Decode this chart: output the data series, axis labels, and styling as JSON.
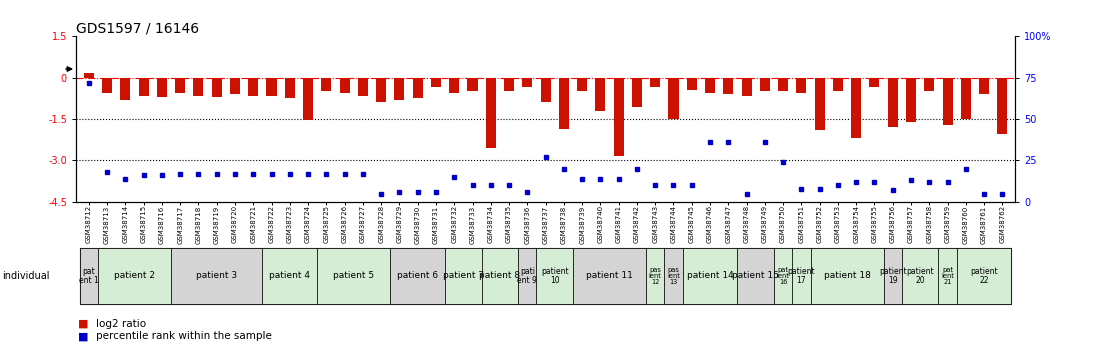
{
  "title": "GDS1597 / 16146",
  "samples": [
    "GSM38712",
    "GSM38713",
    "GSM38714",
    "GSM38715",
    "GSM38716",
    "GSM38717",
    "GSM38718",
    "GSM38719",
    "GSM38720",
    "GSM38721",
    "GSM38722",
    "GSM38723",
    "GSM38724",
    "GSM38725",
    "GSM38726",
    "GSM38727",
    "GSM38728",
    "GSM38729",
    "GSM38730",
    "GSM38731",
    "GSM38732",
    "GSM38733",
    "GSM38734",
    "GSM38735",
    "GSM38736",
    "GSM38737",
    "GSM38738",
    "GSM38739",
    "GSM38740",
    "GSM38741",
    "GSM38742",
    "GSM38743",
    "GSM38744",
    "GSM38745",
    "GSM38746",
    "GSM38747",
    "GSM38748",
    "GSM38749",
    "GSM38750",
    "GSM38751",
    "GSM38752",
    "GSM38753",
    "GSM38754",
    "GSM38755",
    "GSM38756",
    "GSM38757",
    "GSM38758",
    "GSM38759",
    "GSM38760",
    "GSM38761",
    "GSM38762"
  ],
  "log2_ratio": [
    0.18,
    -0.55,
    -0.8,
    -0.65,
    -0.7,
    -0.55,
    -0.65,
    -0.7,
    -0.6,
    -0.65,
    -0.65,
    -0.75,
    -1.55,
    -0.5,
    -0.55,
    -0.65,
    -0.9,
    -0.8,
    -0.75,
    -0.35,
    -0.55,
    -0.5,
    -2.55,
    -0.5,
    -0.35,
    -0.9,
    -1.85,
    -0.5,
    -1.2,
    -2.85,
    -1.05,
    -0.35,
    -1.5,
    -0.45,
    -0.55,
    -0.6,
    -0.65,
    -0.5,
    -0.5,
    -0.55,
    -1.9,
    -0.5,
    -2.2,
    -0.35,
    -1.8,
    -1.6,
    -0.5,
    -1.7,
    -1.5,
    -0.6,
    -2.05
  ],
  "percentile_rank": [
    72,
    18,
    14,
    16,
    16,
    17,
    17,
    17,
    17,
    17,
    17,
    17,
    17,
    17,
    17,
    17,
    5,
    6,
    6,
    6,
    15,
    10,
    10,
    10,
    6,
    27,
    20,
    14,
    14,
    14,
    20,
    10,
    10,
    10,
    36,
    36,
    5,
    36,
    24,
    8,
    8,
    10,
    12,
    12,
    7,
    13,
    12,
    12,
    20,
    5,
    5
  ],
  "patients": [
    {
      "label": "pat\nent 1",
      "start": 0,
      "end": 1,
      "color": "#d4d4d4"
    },
    {
      "label": "patient 2",
      "start": 1,
      "end": 5,
      "color": "#d4edd4"
    },
    {
      "label": "patient 3",
      "start": 5,
      "end": 10,
      "color": "#d4d4d4"
    },
    {
      "label": "patient 4",
      "start": 10,
      "end": 13,
      "color": "#d4edd4"
    },
    {
      "label": "patient 5",
      "start": 13,
      "end": 17,
      "color": "#d4edd4"
    },
    {
      "label": "patient 6",
      "start": 17,
      "end": 20,
      "color": "#d4d4d4"
    },
    {
      "label": "patient 7",
      "start": 20,
      "end": 22,
      "color": "#d4edd4"
    },
    {
      "label": "patient 8",
      "start": 22,
      "end": 24,
      "color": "#d4edd4"
    },
    {
      "label": "pati\nent 9",
      "start": 24,
      "end": 25,
      "color": "#d4d4d4"
    },
    {
      "label": "patient\n10",
      "start": 25,
      "end": 27,
      "color": "#d4edd4"
    },
    {
      "label": "patient 11",
      "start": 27,
      "end": 31,
      "color": "#d4d4d4"
    },
    {
      "label": "pas\nient\n12",
      "start": 31,
      "end": 32,
      "color": "#d4edd4"
    },
    {
      "label": "pas\nient\n13",
      "start": 32,
      "end": 33,
      "color": "#d4d4d4"
    },
    {
      "label": "patient 14",
      "start": 33,
      "end": 36,
      "color": "#d4edd4"
    },
    {
      "label": "patient 15",
      "start": 36,
      "end": 38,
      "color": "#d4d4d4"
    },
    {
      "label": "pat\nient\n16",
      "start": 38,
      "end": 39,
      "color": "#d4edd4"
    },
    {
      "label": "patient\n17",
      "start": 39,
      "end": 40,
      "color": "#d4edd4"
    },
    {
      "label": "patient 18",
      "start": 40,
      "end": 44,
      "color": "#d4edd4"
    },
    {
      "label": "patient\n19",
      "start": 44,
      "end": 45,
      "color": "#d4d4d4"
    },
    {
      "label": "patient\n20",
      "start": 45,
      "end": 47,
      "color": "#d4edd4"
    },
    {
      "label": "pat\nient\n21",
      "start": 47,
      "end": 48,
      "color": "#d4edd4"
    },
    {
      "label": "patient\n22",
      "start": 48,
      "end": 51,
      "color": "#d4edd4"
    }
  ],
  "bar_color": "#cc1100",
  "dot_color": "#0000cc",
  "ylim": [
    -4.5,
    1.5
  ],
  "yticks_left": [
    1.5,
    0.0,
    -1.5,
    -3.0,
    -4.5
  ],
  "yticks_right_pct": [
    100,
    75,
    50,
    25,
    0
  ],
  "title_fontsize": 10,
  "tick_fontsize": 7,
  "sample_label_fontsize": 5.0,
  "legend_fontsize": 7.5,
  "patient_fontsize": 6.5
}
